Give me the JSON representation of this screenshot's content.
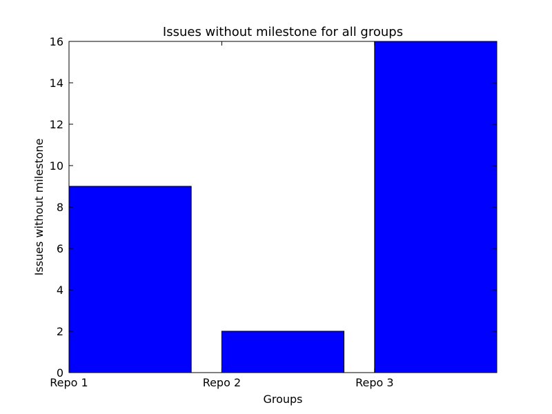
{
  "chart_data": {
    "type": "bar",
    "title": "Issues without milestone for all groups",
    "xlabel": "Groups",
    "ylabel": "Issues without milestone",
    "categories": [
      "Repo 1",
      "Repo 2",
      "Repo 3"
    ],
    "values": [
      9,
      2,
      16
    ],
    "ylim": [
      0,
      16
    ],
    "yticks": [
      "0",
      "2",
      "4",
      "6",
      "8",
      "10",
      "12",
      "14",
      "16"
    ],
    "bar_color": "#0000ff",
    "edge_color": "#000000",
    "grid": false,
    "legend": "none"
  }
}
